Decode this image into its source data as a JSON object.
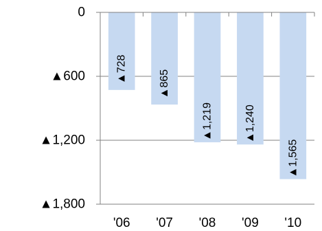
{
  "chart_data": {
    "type": "bar",
    "categories": [
      "'06",
      "'07",
      "'08",
      "'09",
      "'10"
    ],
    "values": [
      -728,
      -865,
      -1219,
      -1240,
      -1565
    ],
    "data_labels": [
      "▲728",
      "▲865",
      "▲1,219",
      "▲1,240",
      "▲1,565"
    ],
    "y_ticks": [
      {
        "value": 0,
        "label": "0"
      },
      {
        "value": -600,
        "label": "▲600"
      },
      {
        "value": -1200,
        "label": "▲1,200"
      },
      {
        "value": -1800,
        "label": "▲1,800"
      }
    ],
    "ylim": [
      -1800,
      0
    ],
    "grid": true,
    "legend": "none",
    "colors": {
      "bar": "#c6d9f1",
      "axis": "#808080",
      "grid": "#808080",
      "text": "#000000"
    }
  }
}
